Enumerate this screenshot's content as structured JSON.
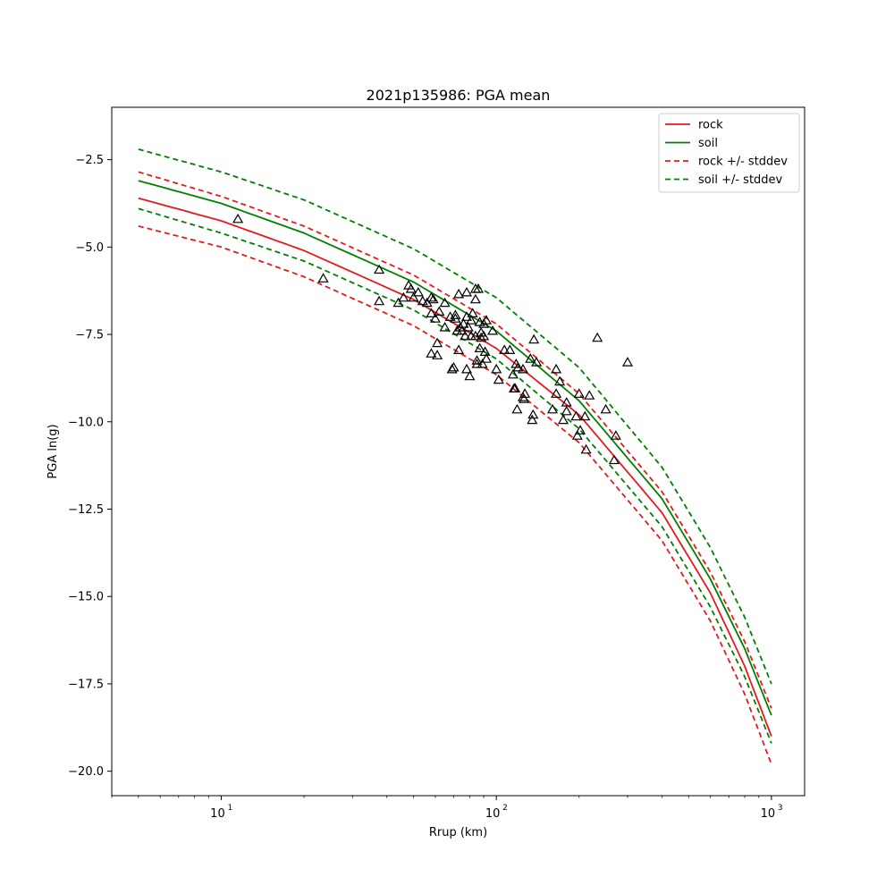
{
  "chart_data": {
    "type": "scatter",
    "title": "2021p135986: PGA mean",
    "xlabel": "Rrup (km)",
    "ylabel": "PGA ln(g)",
    "xscale": "log",
    "xlim": [
      4.0,
      1320
    ],
    "ylim": [
      -20.7,
      -1.0
    ],
    "x_tick_values": [
      10,
      100,
      1000
    ],
    "x_tick_labels": [
      {
        "base": "10",
        "exp": "1"
      },
      {
        "base": "10",
        "exp": "2"
      },
      {
        "base": "10",
        "exp": "3"
      }
    ],
    "y_ticks": [
      -2.5,
      -5.0,
      -7.5,
      -10.0,
      -12.5,
      -15.0,
      -17.5,
      -20.0
    ],
    "y_tick_labels": [
      "−2.5",
      "−5.0",
      "−7.5",
      "−10.0",
      "−12.5",
      "−15.0",
      "−17.5",
      "−20.0"
    ],
    "grid": false,
    "legend_position": "top-right",
    "colors": {
      "rock": "#e41a1c",
      "soil": "#008000",
      "points": "#000000"
    },
    "series": [
      {
        "name": "rock",
        "style": "solid",
        "color": "#e41a1c",
        "x": [
          5,
          10,
          20,
          50,
          100,
          200,
          400,
          600,
          800,
          1000
        ],
        "y": [
          -3.6,
          -4.25,
          -5.1,
          -6.5,
          -7.9,
          -9.8,
          -12.6,
          -14.9,
          -17.0,
          -19.0
        ]
      },
      {
        "name": "soil",
        "style": "solid",
        "color": "#008000",
        "x": [
          5,
          10,
          20,
          50,
          100,
          200,
          400,
          600,
          800,
          1000
        ],
        "y": [
          -3.1,
          -3.75,
          -4.6,
          -6.0,
          -7.4,
          -9.4,
          -12.2,
          -14.5,
          -16.5,
          -18.4
        ]
      },
      {
        "name": "rock +/- stddev",
        "style": "dashed",
        "color": "#e41a1c",
        "x": [
          5,
          10,
          20,
          50,
          100,
          200,
          400,
          600,
          800,
          1000
        ],
        "y": [
          -2.85,
          -3.55,
          -4.4,
          -5.8,
          -7.2,
          -9.2,
          -12.0,
          -14.3,
          -16.3,
          -18.2
        ]
      },
      {
        "name": "",
        "style": "dashed",
        "color": "#e41a1c",
        "x": [
          5,
          10,
          20,
          50,
          100,
          200,
          400,
          600,
          800,
          1000
        ],
        "y": [
          -4.4,
          -5.0,
          -5.85,
          -7.25,
          -8.65,
          -10.6,
          -13.4,
          -15.7,
          -17.8,
          -19.8
        ]
      },
      {
        "name": "soil +/- stddev",
        "style": "dashed",
        "color": "#008000",
        "x": [
          5,
          10,
          20,
          50,
          100,
          200,
          400,
          600,
          800,
          1000
        ],
        "y": [
          -2.2,
          -2.85,
          -3.65,
          -5.05,
          -6.45,
          -8.45,
          -11.3,
          -13.6,
          -15.6,
          -17.5
        ]
      },
      {
        "name": "",
        "style": "dashed",
        "color": "#008000",
        "x": [
          5,
          10,
          20,
          50,
          100,
          200,
          400,
          600,
          800,
          1000
        ],
        "y": [
          -3.9,
          -4.6,
          -5.4,
          -6.8,
          -8.2,
          -10.2,
          -13.0,
          -15.3,
          -17.3,
          -19.2
        ]
      }
    ],
    "points": [
      [
        11.5,
        -4.2
      ],
      [
        23.5,
        -5.9
      ],
      [
        37.5,
        -5.65
      ],
      [
        37.5,
        -6.55
      ],
      [
        44,
        -6.6
      ],
      [
        46,
        -6.45
      ],
      [
        48,
        -6.1
      ],
      [
        49,
        -6.2
      ],
      [
        50,
        -6.45
      ],
      [
        52,
        -6.3
      ],
      [
        54,
        -6.55
      ],
      [
        56,
        -6.6
      ],
      [
        58,
        -6.9
      ],
      [
        58,
        -6.45
      ],
      [
        58,
        -8.05
      ],
      [
        59,
        -6.5
      ],
      [
        60,
        -7.05
      ],
      [
        61,
        -8.1
      ],
      [
        61,
        -7.75
      ],
      [
        62,
        -6.85
      ],
      [
        65,
        -6.6
      ],
      [
        65,
        -7.3
      ],
      [
        68,
        -7.0
      ],
      [
        69,
        -8.5
      ],
      [
        70,
        -8.45
      ],
      [
        71,
        -6.95
      ],
      [
        71,
        -7.05
      ],
      [
        72,
        -7.4
      ],
      [
        73,
        -7.95
      ],
      [
        73,
        -6.35
      ],
      [
        74,
        -7.3
      ],
      [
        75,
        -7.4
      ],
      [
        76,
        -7.2
      ],
      [
        77,
        -7.55
      ],
      [
        78,
        -6.3
      ],
      [
        78,
        -8.5
      ],
      [
        78,
        -7.0
      ],
      [
        79,
        -7.3
      ],
      [
        80,
        -8.7
      ],
      [
        81,
        -7.1
      ],
      [
        81,
        -7.55
      ],
      [
        82,
        -6.9
      ],
      [
        84,
        -6.2
      ],
      [
        84,
        -6.5
      ],
      [
        84,
        -7.55
      ],
      [
        85,
        -8.35
      ],
      [
        85,
        -8.25
      ],
      [
        86,
        -6.2
      ],
      [
        87,
        -7.15
      ],
      [
        87,
        -7.9
      ],
      [
        88,
        -7.6
      ],
      [
        88,
        -7.45
      ],
      [
        89,
        -8.35
      ],
      [
        90,
        -7.55
      ],
      [
        90,
        -7.2
      ],
      [
        91,
        -8.0
      ],
      [
        92,
        -8.2
      ],
      [
        92,
        -7.1
      ],
      [
        97,
        -7.4
      ],
      [
        100,
        -8.5
      ],
      [
        102,
        -8.8
      ],
      [
        107,
        -7.95
      ],
      [
        112,
        -7.95
      ],
      [
        115,
        -8.65
      ],
      [
        116,
        -9.05
      ],
      [
        117,
        -9.05
      ],
      [
        118,
        -8.35
      ],
      [
        119,
        -9.65
      ],
      [
        120,
        -8.45
      ],
      [
        125,
        -9.3
      ],
      [
        125,
        -8.5
      ],
      [
        126,
        -9.35
      ],
      [
        127,
        -9.2
      ],
      [
        133,
        -8.2
      ],
      [
        135,
        -9.95
      ],
      [
        136,
        -9.8
      ],
      [
        137,
        -7.65
      ],
      [
        140,
        -8.3
      ],
      [
        160,
        -9.65
      ],
      [
        165,
        -8.5
      ],
      [
        165,
        -9.2
      ],
      [
        170,
        -8.85
      ],
      [
        175,
        -9.95
      ],
      [
        180,
        -9.7
      ],
      [
        180,
        -9.45
      ],
      [
        195,
        -9.85
      ],
      [
        197,
        -10.4
      ],
      [
        200,
        -9.2
      ],
      [
        202,
        -10.25
      ],
      [
        210,
        -9.85
      ],
      [
        212,
        -10.8
      ],
      [
        218,
        -9.25
      ],
      [
        233,
        -7.6
      ],
      [
        250,
        -9.65
      ],
      [
        268,
        -11.1
      ],
      [
        272,
        -10.4
      ],
      [
        300,
        -8.3
      ]
    ]
  }
}
